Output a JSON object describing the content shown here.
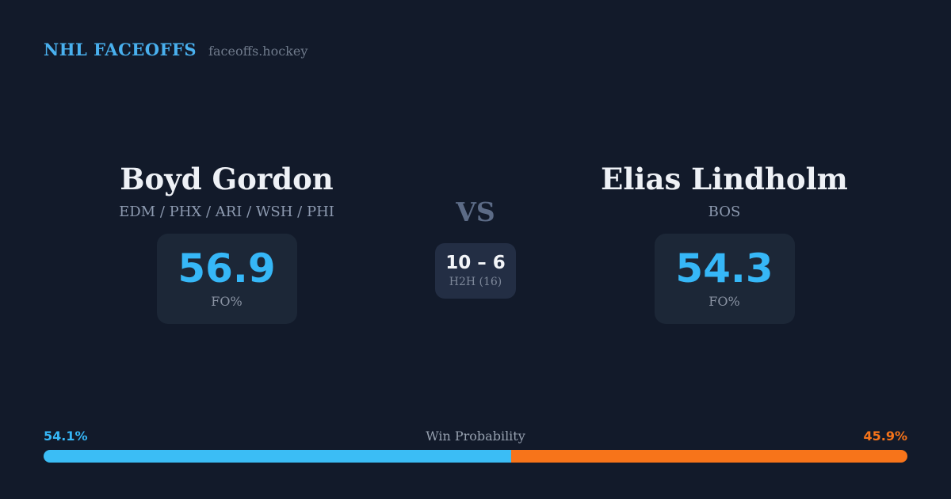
{
  "colors": {
    "background": "#121a2a",
    "card_background": "#1c2737",
    "h2h_card_background": "#232e44",
    "accent_blue": "#3bbdf5",
    "accent_orange": "#f7741a",
    "brand_blue": "#49b0ee",
    "text_white": "#eef1f6",
    "text_muted": "#8d9ab0"
  },
  "header": {
    "brand": "NHL FACEOFFS",
    "domain": "faceoffs.hockey"
  },
  "matchup": {
    "player_left": {
      "name": "Boyd Gordon",
      "teams": "EDM / PHX / ARI / WSH / PHI",
      "stat_value": "56.9",
      "stat_label": "FO%"
    },
    "vs_label": "VS",
    "h2h": {
      "score": "10 – 6",
      "label": "H2H (16)"
    },
    "player_right": {
      "name": "Elias Lindholm",
      "teams": "BOS",
      "stat_value": "54.3",
      "stat_label": "FO%"
    }
  },
  "win_probability": {
    "title": "Win Probability",
    "left_pct_label": "54.1%",
    "right_pct_label": "45.9%",
    "left_value": 54.1,
    "right_value": 45.9
  }
}
